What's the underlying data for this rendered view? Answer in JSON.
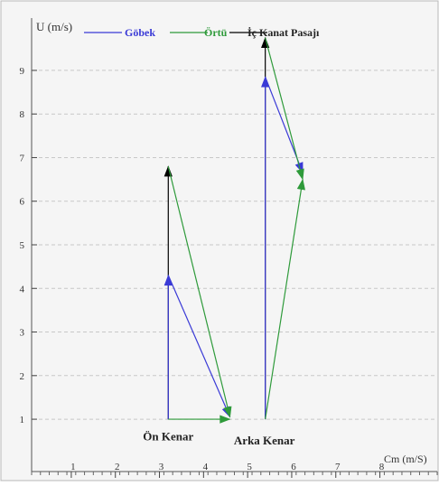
{
  "chart_data": {
    "type": "line",
    "xlabel": "Cm (m/S)",
    "ylabel": "U (m/s)",
    "xlim": [
      0.1,
      9.3
    ],
    "ylim": [
      -0.2,
      10.2
    ],
    "x_ticks": [
      1,
      2,
      3,
      4,
      5,
      6,
      7,
      8
    ],
    "y_ticks": [
      1,
      2,
      3,
      4,
      5,
      6,
      7,
      8,
      9
    ],
    "grid": true,
    "legend_position": "top",
    "legend": [
      {
        "key": "gobek",
        "label": "Göbek",
        "color": "#3a3ad6"
      },
      {
        "key": "ortu",
        "label": "Örtü",
        "color": "#2e9a3a"
      },
      {
        "key": "ic",
        "label": "İç Kanat Pasajı",
        "color": "#000000"
      }
    ],
    "annotations": [
      {
        "key": "on_kenar",
        "text": "Ön Kenar",
        "x": 3.2,
        "y": 0.6
      },
      {
        "key": "arka_kenar",
        "text": "Arka Kenar",
        "x": 5.38,
        "y": 0.5
      }
    ],
    "series": [
      {
        "key": "ic",
        "name": "İç Kanat Pasajı",
        "color": "#000000",
        "segments": [
          {
            "from": [
              3.2,
              1.0
            ],
            "to": [
              3.2,
              6.8
            ],
            "arrow": true
          },
          {
            "from": [
              5.4,
              1.0
            ],
            "to": [
              5.4,
              9.75
            ],
            "arrow": true
          }
        ]
      },
      {
        "key": "gobek",
        "name": "Göbek",
        "color": "#3a3ad6",
        "segments": [
          {
            "from": [
              3.2,
              1.0
            ],
            "to": [
              3.2,
              4.3
            ],
            "arrow": true
          },
          {
            "from": [
              3.2,
              4.3
            ],
            "to": [
              4.6,
              1.05
            ],
            "arrow": true
          },
          {
            "from": [
              5.4,
              1.0
            ],
            "to": [
              5.4,
              8.85
            ],
            "arrow": true
          },
          {
            "from": [
              5.4,
              8.85
            ],
            "to": [
              6.25,
              6.65
            ],
            "arrow": true
          }
        ]
      },
      {
        "key": "ortu",
        "name": "Örtü",
        "color": "#2e9a3a",
        "segments": [
          {
            "from": [
              3.2,
              1.0
            ],
            "to": [
              4.6,
              1.0
            ],
            "arrow": true
          },
          {
            "from": [
              3.2,
              6.8
            ],
            "to": [
              4.6,
              1.05
            ],
            "arrow": true
          },
          {
            "from": [
              5.4,
              1.0
            ],
            "to": [
              6.25,
              6.5
            ],
            "arrow": true
          },
          {
            "from": [
              5.4,
              9.75
            ],
            "to": [
              6.25,
              6.5
            ],
            "arrow": true
          }
        ]
      }
    ]
  }
}
